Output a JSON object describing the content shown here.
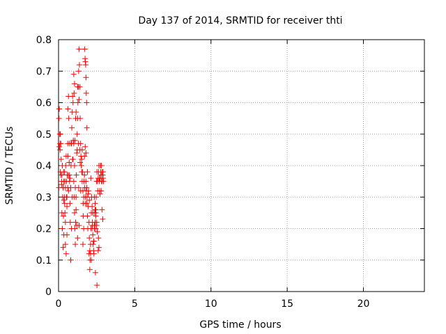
{
  "chart_data": {
    "type": "scatter",
    "title": "Day 137 of 2014, SRMTID for receiver thti",
    "xlabel": "GPS time / hours",
    "ylabel": "SRMTID / TECUs",
    "xlim": [
      0,
      24
    ],
    "ylim": [
      0,
      0.8
    ],
    "xticks": [
      0,
      5,
      10,
      15,
      20
    ],
    "xtick_labels": [
      "0",
      "5",
      "10",
      "15",
      "20"
    ],
    "yticks": [
      0,
      0.1,
      0.2,
      0.3,
      0.4,
      0.5,
      0.6,
      0.7,
      0.8
    ],
    "ytick_labels": [
      "0",
      "0.1",
      "0.2",
      "0.3",
      "0.4",
      "0.5",
      "0.6",
      "0.7",
      "0.8"
    ],
    "grid": true,
    "marker": "plus",
    "color": "#ff0000",
    "series": [
      {
        "x": [
          0.03,
          0.05,
          0.08,
          0.1,
          0.12,
          0.15,
          0.17,
          0.2,
          0.22,
          0.25,
          0.27,
          0.3,
          0.33,
          0.35,
          0.38,
          0.4,
          0.42,
          0.45,
          0.47,
          0.5,
          0.52,
          0.55,
          0.57,
          0.6,
          0.62,
          0.65,
          0.67,
          0.7,
          0.72,
          0.75,
          0.77,
          0.8,
          0.82,
          0.85,
          0.87,
          0.9,
          0.92,
          0.95,
          0.97,
          1.0,
          1.02,
          1.05,
          1.07,
          1.1,
          1.12,
          1.15,
          1.17,
          1.2,
          1.22,
          1.25,
          1.27,
          1.3,
          1.32,
          1.35,
          1.37,
          1.4,
          1.42,
          1.45,
          1.47,
          1.5,
          1.52,
          1.55,
          1.57,
          1.6,
          1.62,
          1.65,
          1.67,
          1.7,
          1.72,
          1.75,
          1.77,
          1.8,
          1.82,
          1.85,
          1.87,
          1.9,
          1.92,
          1.95,
          1.97,
          2.0,
          2.02,
          2.05,
          2.07,
          2.1,
          2.12,
          2.15,
          2.17,
          2.2,
          2.22,
          2.25,
          2.27,
          2.3,
          2.32,
          2.35,
          2.37,
          2.4,
          2.42,
          2.45,
          2.47,
          2.5,
          2.52,
          2.55,
          2.57,
          2.6,
          2.62,
          2.65,
          2.67,
          2.7,
          2.72,
          2.75,
          2.77,
          2.8,
          2.82,
          2.85,
          2.87,
          2.9,
          2.92,
          2.95,
          0.05,
          0.1,
          0.15,
          0.2,
          0.25,
          0.3,
          0.35,
          0.4,
          0.45,
          0.5,
          0.55,
          0.6,
          0.65,
          0.7,
          0.75,
          0.8,
          0.85,
          0.9,
          0.95,
          1.0,
          1.05,
          1.1,
          1.15,
          1.2,
          1.25,
          1.3,
          1.35,
          1.4,
          1.45,
          1.5,
          1.55,
          1.6,
          1.65,
          1.7,
          1.75,
          1.8,
          1.85,
          1.9,
          1.95,
          2.0,
          2.05,
          2.1,
          2.15,
          2.2,
          2.25,
          2.3,
          2.35,
          2.4,
          2.45,
          2.5,
          2.55,
          2.6,
          2.65,
          2.7,
          2.75,
          2.8,
          2.85,
          2.9,
          0.02,
          0.12,
          0.22,
          0.32,
          0.42,
          0.52,
          0.62,
          0.72,
          0.82,
          0.92,
          1.02,
          1.12,
          1.22,
          1.32,
          1.42,
          1.52,
          1.62,
          1.72,
          1.74,
          1.76,
          1.78,
          1.8,
          1.82,
          1.84,
          1.86,
          2.02,
          2.12,
          2.22,
          2.32,
          2.42,
          2.52,
          2.62,
          2.72,
          2.82,
          2.92,
          1.0,
          1.05,
          1.08,
          1.15,
          1.25,
          1.35,
          0.3,
          0.35,
          0.45,
          0.55,
          0.65,
          2.35,
          2.4,
          2.45,
          2.5,
          2.55
        ],
        "y": [
          0.55,
          0.58,
          0.5,
          0.45,
          0.38,
          0.47,
          0.42,
          0.35,
          0.25,
          0.2,
          0.3,
          0.33,
          0.38,
          0.35,
          0.3,
          0.28,
          0.25,
          0.33,
          0.4,
          0.43,
          0.35,
          0.3,
          0.37,
          0.47,
          0.58,
          0.62,
          0.55,
          0.47,
          0.35,
          0.28,
          0.22,
          0.33,
          0.4,
          0.47,
          0.52,
          0.57,
          0.62,
          0.6,
          0.48,
          0.35,
          0.3,
          0.25,
          0.2,
          0.15,
          0.22,
          0.3,
          0.37,
          0.44,
          0.5,
          0.55,
          0.6,
          0.65,
          0.7,
          0.77,
          0.72,
          0.65,
          0.55,
          0.47,
          0.43,
          0.4,
          0.42,
          0.45,
          0.38,
          0.32,
          0.28,
          0.3,
          0.35,
          0.37,
          0.33,
          0.28,
          0.3,
          0.35,
          0.32,
          0.28,
          0.3,
          0.24,
          0.2,
          0.27,
          0.32,
          0.22,
          0.17,
          0.13,
          0.1,
          0.15,
          0.2,
          0.25,
          0.3,
          0.27,
          0.22,
          0.18,
          0.15,
          0.13,
          0.16,
          0.2,
          0.25,
          0.22,
          0.2,
          0.25,
          0.3,
          0.35,
          0.38,
          0.35,
          0.32,
          0.36,
          0.38,
          0.4,
          0.35,
          0.32,
          0.36,
          0.4,
          0.38,
          0.37,
          0.4,
          0.35,
          0.38,
          0.37,
          0.36,
          0.35,
          0.46,
          0.47,
          0.37,
          0.34,
          0.4,
          0.33,
          0.29,
          0.38,
          0.15,
          0.12,
          0.18,
          0.33,
          0.37,
          0.41,
          0.36,
          0.1,
          0.2,
          0.3,
          0.42,
          0.47,
          0.4,
          0.33,
          0.26,
          0.21,
          0.17,
          0.47,
          0.21,
          0.45,
          0.32,
          0.4,
          0.35,
          0.15,
          0.2,
          0.43,
          0.46,
          0.44,
          0.33,
          0.38,
          0.31,
          0.12,
          0.07,
          0.12,
          0.1,
          0.2,
          0.25,
          0.16,
          0.21,
          0.26,
          0.24,
          0.21,
          0.19,
          0.13,
          0.14,
          0.36,
          0.4,
          0.32,
          0.26,
          0.23,
          0.33,
          0.5,
          0.37,
          0.24,
          0.35,
          0.3,
          0.43,
          0.37,
          0.47,
          0.42,
          0.63,
          0.55,
          0.45,
          0.33,
          0.41,
          0.38,
          0.24,
          0.77,
          0.74,
          0.73,
          0.72,
          0.68,
          0.63,
          0.6,
          0.52,
          0.29,
          0.36,
          0.21,
          0.12,
          0.06,
          0.02,
          0.17,
          0.31,
          0.35,
          0.38,
          0.69,
          0.66,
          0.48,
          0.57,
          0.65,
          0.61,
          0.14,
          0.18,
          0.22,
          0.27,
          0.32,
          0.3,
          0.28,
          0.26,
          0.22,
          0.19
        ]
      }
    ]
  }
}
